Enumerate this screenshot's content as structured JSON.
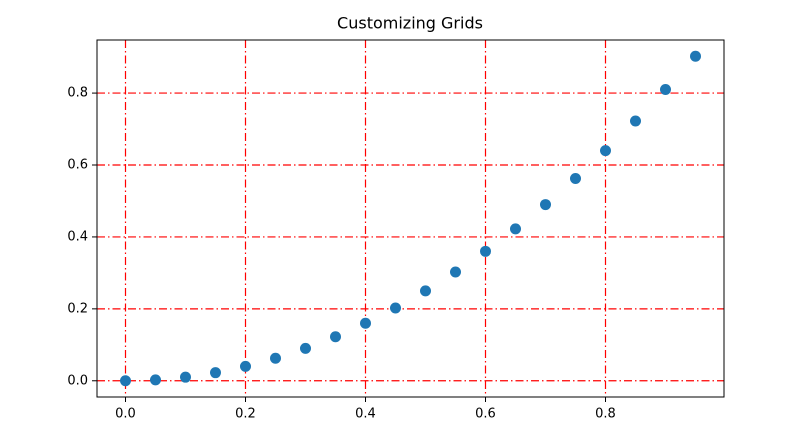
{
  "chart_data": {
    "type": "scatter",
    "title": "Customizing Grids",
    "series": [
      {
        "color": "#1f77b4",
        "x": [
          0,
          0.05,
          0.1,
          0.15,
          0.2,
          0.25,
          0.3,
          0.35,
          0.4,
          0.45,
          0.5,
          0.55,
          0.6,
          0.65,
          0.7,
          0.75,
          0.8,
          0.85,
          0.9,
          0.95
        ],
        "values": [
          0,
          0.0025,
          0.01,
          0.0225,
          0.04,
          0.0625,
          0.09,
          0.1225,
          0.16,
          0.2025,
          0.25,
          0.3025,
          0.36,
          0.4225,
          0.49,
          0.5625,
          0.64,
          0.7225,
          0.81,
          0.9025
        ]
      }
    ],
    "xlim": [
      -0.0475,
      0.9975
    ],
    "ylim": [
      -0.045125,
      0.947625
    ],
    "xticks": [
      {
        "value": 0,
        "label": "0.0"
      },
      0.2,
      0.4,
      0.6,
      0.8
    ],
    "yticks": [
      {
        "value": 0,
        "label": "0.0"
      },
      0.2,
      0.4,
      0.6,
      0.8
    ],
    "grid": true,
    "grid_color": "#ff0000"
  }
}
